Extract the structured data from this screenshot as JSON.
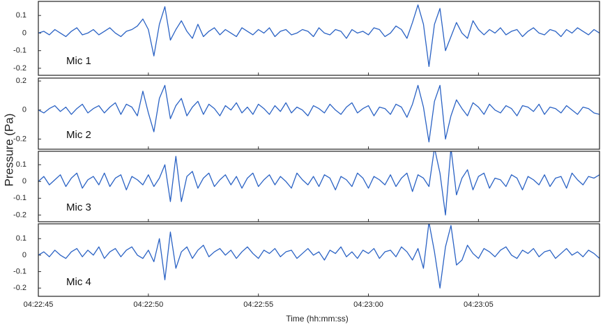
{
  "chart_data": {
    "type": "line",
    "ylabel": "Pressure (Pa)",
    "xlabel": "Time (hh:mm:ss)",
    "xlim": [
      0,
      25.5
    ],
    "xticks": [
      {
        "value": 0,
        "label": "04:22:45"
      },
      {
        "value": 5,
        "label": "04:22:50"
      },
      {
        "value": 10,
        "label": "04:22:55"
      },
      {
        "value": 15,
        "label": "04:23:00"
      },
      {
        "value": 20,
        "label": "04:23:05"
      }
    ],
    "x": [
      0,
      0.25,
      0.5,
      0.75,
      1,
      1.25,
      1.5,
      1.75,
      2,
      2.25,
      2.5,
      2.75,
      3,
      3.25,
      3.5,
      3.75,
      4,
      4.25,
      4.5,
      4.75,
      5,
      5.25,
      5.5,
      5.75,
      6,
      6.25,
      6.5,
      6.75,
      7,
      7.25,
      7.5,
      7.75,
      8,
      8.25,
      8.5,
      8.75,
      9,
      9.25,
      9.5,
      9.75,
      10,
      10.25,
      10.5,
      10.75,
      11,
      11.25,
      11.5,
      11.75,
      12,
      12.25,
      12.5,
      12.75,
      13,
      13.25,
      13.5,
      13.75,
      14,
      14.25,
      14.5,
      14.75,
      15,
      15.25,
      15.5,
      15.75,
      16,
      16.25,
      16.5,
      16.75,
      17,
      17.25,
      17.5,
      17.75,
      18,
      18.25,
      18.5,
      18.75,
      19,
      19.25,
      19.5,
      19.75,
      20,
      20.25,
      20.5,
      20.75,
      21,
      21.25,
      21.5,
      21.75,
      22,
      22.25,
      22.5,
      22.75,
      23,
      23.25,
      23.5,
      23.75,
      24,
      24.25,
      24.5,
      24.75,
      25,
      25.25,
      25.5
    ],
    "series": [
      {
        "name": "Mic 1",
        "color": "#2a62c4",
        "ylim": [
          -0.24,
          0.18
        ],
        "yticks": [
          0.1,
          0,
          -0.1,
          -0.2
        ],
        "values": [
          0,
          0.01,
          -0.01,
          0.02,
          0,
          -0.02,
          0.01,
          0.03,
          -0.01,
          0,
          0.02,
          -0.01,
          0.01,
          0.03,
          0,
          -0.02,
          0.01,
          0.02,
          0.04,
          0.08,
          0.02,
          -0.13,
          0.05,
          0.15,
          -0.04,
          0.02,
          0.07,
          0.01,
          -0.03,
          0.05,
          -0.02,
          0.01,
          0.03,
          -0.01,
          0.02,
          0,
          -0.02,
          0.03,
          0.01,
          -0.01,
          0.02,
          0,
          0.03,
          -0.02,
          0.01,
          0.02,
          -0.01,
          0,
          0.02,
          0.01,
          -0.02,
          0.03,
          0,
          -0.01,
          0.02,
          0.01,
          -0.03,
          0.02,
          0,
          0.01,
          -0.01,
          0.03,
          0.02,
          -0.02,
          0,
          0.04,
          0.02,
          -0.03,
          0.06,
          0.16,
          0.05,
          -0.19,
          0.05,
          0.14,
          -0.1,
          -0.02,
          0.06,
          0,
          -0.03,
          0.07,
          0.02,
          -0.01,
          0.02,
          0,
          0.03,
          -0.01,
          0.01,
          0.02,
          -0.02,
          0.01,
          0.03,
          0,
          -0.01,
          0.02,
          0.01,
          -0.02,
          0.02,
          0,
          0.03,
          0.01,
          -0.01,
          0.02,
          0
        ]
      },
      {
        "name": "Mic 2",
        "color": "#2a62c4",
        "ylim": [
          -0.27,
          0.22
        ],
        "yticks": [
          0.2,
          0,
          -0.2
        ],
        "values": [
          0,
          -0.02,
          0.01,
          0.03,
          -0.01,
          0.02,
          -0.03,
          0.01,
          0.04,
          -0.02,
          0.01,
          0.03,
          -0.02,
          0.02,
          0.05,
          -0.03,
          0.04,
          0.02,
          -0.04,
          0.13,
          -0.02,
          -0.15,
          0.08,
          0.17,
          -0.06,
          0.03,
          0.08,
          -0.04,
          0.02,
          0.06,
          -0.03,
          0.04,
          0.01,
          -0.04,
          0.03,
          0,
          0.05,
          -0.02,
          0.02,
          -0.03,
          0.04,
          0.01,
          -0.03,
          0.03,
          -0.01,
          0.05,
          -0.02,
          0.02,
          0,
          -0.04,
          0.03,
          0.01,
          -0.02,
          0.04,
          0,
          -0.03,
          0.02,
          0.05,
          -0.02,
          0.01,
          0.03,
          -0.04,
          0.02,
          0.01,
          -0.03,
          0.04,
          0.02,
          -0.05,
          0.04,
          0.17,
          0.02,
          -0.22,
          0.06,
          0.17,
          -0.2,
          -0.04,
          0.07,
          0.01,
          -0.04,
          0.05,
          0.02,
          -0.03,
          0.04,
          0,
          -0.02,
          0.03,
          0.01,
          -0.04,
          0.03,
          0.02,
          -0.01,
          0.04,
          -0.03,
          0.02,
          0.01,
          -0.02,
          0.03,
          0,
          -0.03,
          0.02,
          0.01,
          -0.02,
          -0.03
        ]
      },
      {
        "name": "Mic 3",
        "color": "#2a62c4",
        "ylim": [
          -0.24,
          0.18
        ],
        "yticks": [
          0.1,
          0,
          -0.1,
          -0.2
        ],
        "values": [
          0,
          0.03,
          -0.02,
          0.01,
          0.04,
          -0.03,
          0.02,
          0.05,
          -0.04,
          0.01,
          0.03,
          -0.02,
          0.05,
          -0.03,
          0.02,
          0.04,
          -0.05,
          0.03,
          0.01,
          -0.02,
          0.04,
          -0.03,
          0.02,
          0.1,
          -0.12,
          0.15,
          -0.12,
          0.03,
          0.06,
          -0.04,
          0.02,
          0.05,
          -0.03,
          0.01,
          0.04,
          -0.02,
          0.03,
          -0.04,
          0.02,
          0.05,
          -0.03,
          0.01,
          0.04,
          -0.02,
          0.03,
          0,
          -0.04,
          0.05,
          0.01,
          -0.02,
          0.03,
          -0.03,
          0.04,
          0.02,
          -0.05,
          0.03,
          0.01,
          -0.03,
          0.05,
          0.02,
          -0.04,
          0.03,
          0.01,
          -0.02,
          0.04,
          -0.03,
          0.02,
          0.05,
          -0.06,
          0.04,
          0.02,
          -0.03,
          0.2,
          0.05,
          -0.2,
          0.2,
          -0.08,
          0.02,
          0.07,
          -0.05,
          0.03,
          0.05,
          -0.04,
          0.02,
          0.01,
          -0.03,
          0.04,
          0.02,
          -0.05,
          0.03,
          0.01,
          -0.02,
          0.04,
          -0.03,
          0.02,
          0.03,
          -0.04,
          0.05,
          0.01,
          -0.02,
          0.03,
          0.02,
          0.04
        ]
      },
      {
        "name": "Mic 4",
        "color": "#2a62c4",
        "ylim": [
          -0.25,
          0.19
        ],
        "yticks": [
          0.1,
          0,
          -0.1,
          -0.2
        ],
        "values": [
          0,
          0.02,
          -0.01,
          0.03,
          0,
          -0.02,
          0.02,
          0.04,
          -0.01,
          0.03,
          0,
          0.05,
          -0.02,
          0.02,
          0.04,
          -0.01,
          0.03,
          0.05,
          0,
          -0.02,
          0.03,
          -0.04,
          0.1,
          -0.15,
          0.14,
          -0.08,
          0.02,
          0.05,
          -0.02,
          0.03,
          0.06,
          -0.01,
          0.02,
          0.04,
          0,
          0.03,
          -0.02,
          0.02,
          0.05,
          0.01,
          -0.02,
          0.03,
          0.01,
          0.04,
          -0.01,
          0.02,
          0.03,
          -0.02,
          0.01,
          0.04,
          0,
          0.02,
          -0.03,
          0.03,
          0.01,
          0.05,
          -0.01,
          0.02,
          -0.02,
          0.03,
          0.01,
          0.04,
          -0.02,
          0.02,
          0.03,
          -0.01,
          0.05,
          0.02,
          -0.03,
          0.04,
          -0.08,
          0.2,
          0.02,
          -0.2,
          0.05,
          0.18,
          -0.06,
          -0.03,
          0.06,
          0.01,
          -0.02,
          0.04,
          0.02,
          -0.01,
          0.03,
          0.05,
          0,
          -0.02,
          0.03,
          0.01,
          0.04,
          -0.01,
          0.02,
          0.03,
          -0.02,
          0.01,
          0.04,
          0,
          0.02,
          -0.01,
          0.03,
          0.01,
          -0.02
        ]
      }
    ]
  }
}
